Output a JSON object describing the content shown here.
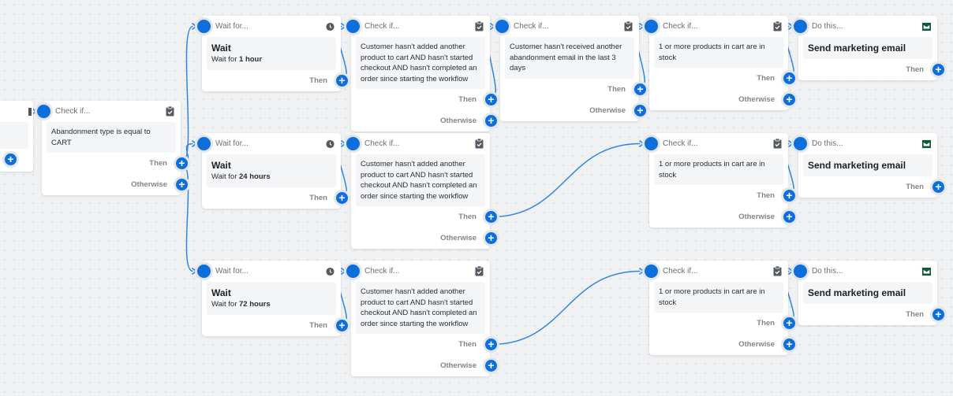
{
  "colors": {
    "accent": "#0d6fdc",
    "wire": "#2f86e0",
    "email_icon": "#0f5a3a"
  },
  "labels": {
    "then": "Then",
    "otherwise": "Otherwise"
  },
  "cards": {
    "cart": {
      "type": "check",
      "title": "Check if...",
      "icon": "clipboard-check-icon",
      "text": "Abandonment type is equal to CART"
    },
    "wait1": {
      "type": "wait",
      "title": "Wait for...",
      "icon": "clock-icon",
      "heading": "Wait",
      "prefix": "Wait for ",
      "duration": "1 hour"
    },
    "wait2": {
      "type": "wait",
      "title": "Wait for...",
      "icon": "clock-icon",
      "heading": "Wait",
      "prefix": "Wait for ",
      "duration": "24 hours"
    },
    "wait3": {
      "type": "wait",
      "title": "Wait for...",
      "icon": "clock-icon",
      "heading": "Wait",
      "prefix": "Wait for ",
      "duration": "72 hours"
    },
    "a1": {
      "type": "check",
      "title": "Check if...",
      "icon": "clipboard-check-icon",
      "text": "Customer hasn't added another product to cart AND hasn't started checkout AND hasn't completed an order since starting the workflow"
    },
    "a2": {
      "type": "check",
      "title": "Check if...",
      "icon": "clipboard-check-icon",
      "text": "Customer hasn't added another product to cart AND hasn't started checkout AND hasn't completed an order since starting the workflow"
    },
    "a3": {
      "type": "check",
      "title": "Check if...",
      "icon": "clipboard-check-icon",
      "text": "Customer hasn't added another product to cart AND hasn't started checkout AND hasn't completed an order since starting the workflow"
    },
    "b1": {
      "type": "check",
      "title": "Check if...",
      "icon": "clipboard-check-icon",
      "text": "Customer hasn't received another abandonment email in the last 3 days"
    },
    "c1": {
      "type": "check",
      "title": "Check if...",
      "icon": "clipboard-check-icon",
      "text": "1 or more products in cart are in stock"
    },
    "c2": {
      "type": "check",
      "title": "Check if...",
      "icon": "clipboard-check-icon",
      "text": "1 or more products in cart are in stock"
    },
    "c3": {
      "type": "check",
      "title": "Check if...",
      "icon": "clipboard-check-icon",
      "text": "1 or more products in cart are in stock"
    },
    "do1": {
      "type": "action",
      "title": "Do this...",
      "icon": "email-icon",
      "heading": "Send marketing email"
    },
    "do2": {
      "type": "action",
      "title": "Do this...",
      "icon": "email-icon",
      "heading": "Send marketing email"
    },
    "do3": {
      "type": "action",
      "title": "Do this...",
      "icon": "email-icon",
      "heading": "Send marketing email"
    }
  }
}
